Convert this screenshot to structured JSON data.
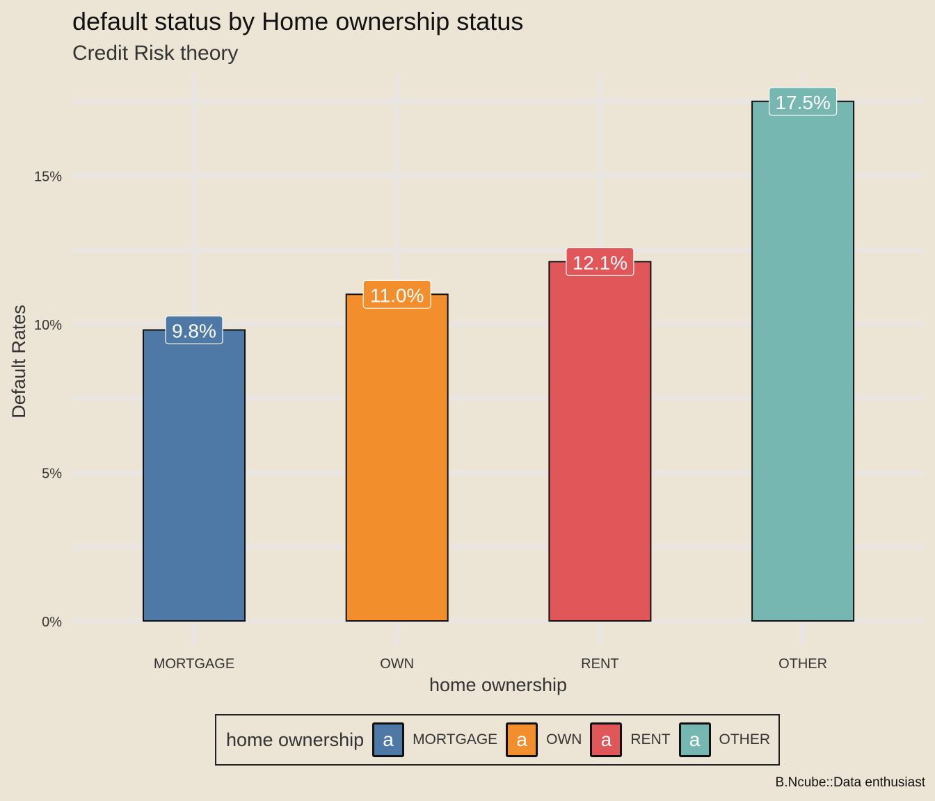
{
  "title": "default status by Home ownership status",
  "subtitle": "Credit Risk theory",
  "caption": "B.Ncube::Data enthusiast",
  "chart_data": {
    "type": "bar",
    "title": "default status by Home ownership status",
    "subtitle": "Credit Risk theory",
    "xlabel": "home ownership",
    "ylabel": "Default Rates",
    "categories": [
      "MORTGAGE",
      "OWN",
      "RENT",
      "OTHER"
    ],
    "values": [
      9.8,
      11.0,
      12.1,
      17.5
    ],
    "data_labels": [
      "9.8%",
      "11.0%",
      "12.1%",
      "17.5%"
    ],
    "colors": [
      "#4e79a7",
      "#f28e2b",
      "#e15759",
      "#76b7b2"
    ],
    "ylim": [
      0,
      17.5
    ],
    "y_ticks": [
      0,
      5,
      10,
      15
    ],
    "y_tick_labels": [
      "0%",
      "5%",
      "10%",
      "15%"
    ],
    "grid": true,
    "background": "#ece5d5",
    "legend": {
      "title": "home ownership",
      "position": "bottom",
      "key_glyph": "a",
      "entries": [
        "MORTGAGE",
        "OWN",
        "RENT",
        "OTHER"
      ]
    }
  }
}
